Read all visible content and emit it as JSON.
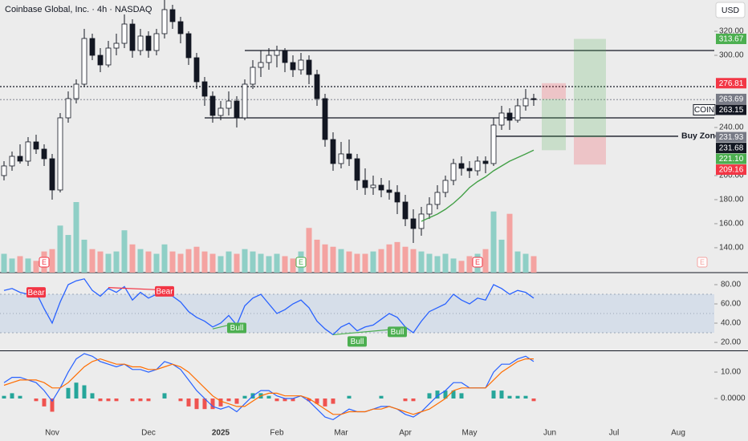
{
  "chart_data": [
    {
      "type": "candlestick",
      "title": "Coinbase Global, Inc. · 4h · NASDAQ",
      "currency": "USD",
      "categories": [
        null,
        null,
        null,
        null,
        null,
        null,
        "Nov",
        null,
        null,
        null,
        null,
        null,
        null,
        null,
        null,
        null,
        null,
        null,
        "Dec",
        null,
        null,
        null,
        null,
        null,
        null,
        null,
        null,
        "2025",
        null,
        null,
        null,
        null,
        null,
        null,
        "Feb",
        null,
        null,
        null,
        null,
        null,
        null,
        null,
        "Mar",
        null,
        null,
        null,
        null,
        null,
        null,
        null,
        "Apr",
        null,
        null,
        null,
        null,
        null,
        null,
        null,
        "May",
        null,
        null,
        null,
        null,
        null,
        null,
        null,
        null,
        null,
        "Jun",
        null,
        null,
        null,
        null,
        null,
        null,
        null,
        "Jul",
        null,
        null,
        null,
        null,
        null,
        null,
        null,
        "Aug",
        null,
        null,
        null,
        null
      ],
      "open": [
        200,
        208,
        216,
        212,
        228,
        222,
        214,
        188,
        248,
        264,
        276,
        314,
        300,
        292,
        306,
        310,
        326,
        304,
        316,
        304,
        318,
        338,
        328,
        318,
        298,
        278,
        266,
        250,
        256,
        262,
        248,
        276,
        290,
        294,
        300,
        304,
        294,
        288,
        296,
        284,
        264,
        230,
        210,
        218,
        214,
        196,
        190,
        192,
        188,
        186,
        178,
        164,
        156,
        168,
        176,
        186,
        196,
        210,
        206,
        204,
        212,
        210,
        242,
        252,
        246,
        258,
        264,
        null,
        null,
        null,
        null,
        null,
        null,
        null,
        null,
        null,
        null,
        null,
        null,
        null,
        null,
        null,
        null,
        null,
        null,
        null,
        null,
        null,
        null
      ],
      "high": [
        212,
        220,
        226,
        232,
        234,
        226,
        218,
        252,
        270,
        280,
        322,
        318,
        306,
        312,
        318,
        334,
        330,
        322,
        320,
        322,
        346,
        342,
        332,
        320,
        302,
        282,
        270,
        262,
        270,
        266,
        280,
        296,
        304,
        306,
        308,
        306,
        300,
        302,
        300,
        288,
        268,
        236,
        228,
        230,
        218,
        206,
        200,
        198,
        196,
        192,
        184,
        172,
        174,
        182,
        192,
        200,
        214,
        216,
        212,
        216,
        216,
        248,
        258,
        256,
        264,
        272,
        268,
        null,
        null,
        null,
        null,
        null,
        null,
        null,
        null,
        null,
        null,
        null,
        null,
        null,
        null,
        null,
        null,
        null,
        null,
        null,
        null,
        null,
        null
      ],
      "low": [
        196,
        204,
        210,
        208,
        218,
        208,
        180,
        186,
        244,
        260,
        274,
        296,
        286,
        290,
        300,
        306,
        298,
        300,
        298,
        300,
        314,
        322,
        310,
        292,
        272,
        258,
        244,
        246,
        250,
        240,
        246,
        272,
        282,
        288,
        290,
        286,
        282,
        284,
        276,
        258,
        224,
        204,
        206,
        208,
        188,
        184,
        184,
        182,
        180,
        168,
        158,
        144,
        150,
        164,
        172,
        182,
        192,
        200,
        198,
        200,
        202,
        208,
        238,
        238,
        244,
        254,
        258,
        null,
        null,
        null,
        null,
        null,
        null,
        null,
        null,
        null,
        null,
        null,
        null,
        null,
        null,
        null,
        null,
        null,
        null,
        null,
        null,
        null,
        null
      ],
      "close": [
        208,
        216,
        212,
        228,
        222,
        214,
        188,
        248,
        264,
        276,
        314,
        300,
        292,
        306,
        310,
        326,
        304,
        316,
        304,
        318,
        338,
        328,
        318,
        298,
        278,
        266,
        250,
        256,
        262,
        248,
        276,
        290,
        294,
        300,
        304,
        294,
        288,
        296,
        284,
        264,
        230,
        210,
        218,
        214,
        196,
        190,
        192,
        188,
        186,
        178,
        164,
        156,
        168,
        176,
        186,
        196,
        210,
        206,
        204,
        212,
        210,
        242,
        252,
        246,
        258,
        264,
        263.15,
        null,
        null,
        null,
        null,
        null,
        null,
        null,
        null,
        null,
        null,
        null,
        null,
        null,
        null,
        null,
        null,
        null,
        null,
        null,
        null,
        null,
        null
      ],
      "volume": [
        8,
        6,
        7,
        6,
        5,
        9,
        10,
        20,
        16,
        30,
        14,
        10,
        9,
        8,
        9,
        18,
        12,
        10,
        9,
        8,
        12,
        9,
        8,
        10,
        11,
        9,
        8,
        7,
        9,
        8,
        10,
        9,
        8,
        7,
        8,
        7,
        6,
        9,
        19,
        14,
        12,
        11,
        10,
        9,
        8,
        8,
        9,
        10,
        12,
        13,
        11,
        10,
        9,
        8,
        7,
        8,
        6,
        5,
        7,
        8,
        10,
        26,
        14,
        25,
        9,
        8,
        7,
        null,
        null,
        null,
        null,
        null,
        null,
        null,
        null,
        null,
        null,
        null,
        null,
        null,
        null,
        null,
        null,
        null,
        null,
        null,
        null,
        null,
        null
      ],
      "up_color": "#ffffff",
      "down_color": "#131722",
      "volume_up_color": "#8fcfc6",
      "volume_down_color": "#f4a3a1",
      "ma": {
        "color": "#43a047",
        "values": [
          null,
          null,
          null,
          null,
          null,
          null,
          null,
          null,
          null,
          null,
          null,
          null,
          null,
          null,
          null,
          null,
          null,
          null,
          null,
          null,
          null,
          null,
          null,
          null,
          null,
          null,
          null,
          null,
          null,
          null,
          null,
          null,
          null,
          null,
          null,
          null,
          null,
          null,
          null,
          null,
          null,
          null,
          null,
          null,
          null,
          null,
          null,
          null,
          null,
          null,
          null,
          null,
          162,
          165,
          168,
          172,
          177,
          183,
          190,
          195,
          199,
          204,
          208,
          212,
          215,
          218,
          221.1,
          null,
          null,
          null,
          null,
          null,
          null,
          null,
          null,
          null,
          null,
          null,
          null,
          null,
          null,
          null,
          null,
          null,
          null,
          null,
          null,
          null,
          null
        ]
      },
      "ylim": [
        119.3,
        346
      ],
      "yticks": [
        {
          "value": 140,
          "label": "140.00"
        },
        {
          "value": 160,
          "label": "160.00"
        },
        {
          "value": 180,
          "label": "180.00"
        },
        {
          "value": 200,
          "label": "200.00"
        },
        {
          "value": 240,
          "label": "240.00"
        },
        {
          "value": 300,
          "label": "300.00"
        },
        {
          "value": 320,
          "label": "320.00"
        }
      ],
      "levels": [
        {
          "value": 304,
          "from": 30,
          "style": "solid",
          "color": "#131722"
        },
        {
          "value": 274,
          "style": "dotted",
          "color": "#131722"
        },
        {
          "value": 263.15,
          "style": "dotted",
          "color": "#9598a1"
        },
        {
          "value": 248,
          "from": 25,
          "style": "solid",
          "color": "#131722"
        },
        {
          "value": 232.7,
          "from": 61,
          "to": 84,
          "style": "solid",
          "color": "#131722",
          "label": "Buy Zone"
        }
      ],
      "positions": [
        {
          "from": 67,
          "to": 70,
          "entry": 263.69,
          "target": 221.1,
          "stop": 276.81
        },
        {
          "from": 71,
          "to": 75,
          "entry": 231.93,
          "target": 313.67,
          "stop": 209.16
        }
      ],
      "price_labels": [
        {
          "value": 313.67,
          "label": "313.67",
          "color": "#4caf50"
        },
        {
          "value": 276.81,
          "label": "276.81",
          "color": "#f23645"
        },
        {
          "value": 263.69,
          "label": "263.69",
          "color": "#787b86"
        },
        {
          "value": 263.15,
          "label": "263.15",
          "color": "#131722",
          "tag": "COIN"
        },
        {
          "value": 231.93,
          "label": "231.93",
          "color": "#787b86"
        },
        {
          "value": 231.68,
          "label": "231.68",
          "color": "#131722"
        },
        {
          "value": 221.1,
          "label": "221.10",
          "color": "#4caf50"
        },
        {
          "value": 209.16,
          "label": "209.16",
          "color": "#f23645"
        }
      ],
      "events": [
        {
          "index": 5,
          "label": "E",
          "color": "#f23645"
        },
        {
          "index": 37,
          "label": "E",
          "color": "#4caf50"
        },
        {
          "index": 59,
          "label": "E",
          "color": "#f23645"
        },
        {
          "index": 87,
          "label": "E",
          "color": "#f4a3a1"
        }
      ]
    },
    {
      "type": "line",
      "color": "#2962ff",
      "values": [
        74,
        76,
        72,
        70,
        72,
        55,
        40,
        62,
        80,
        84,
        86,
        74,
        68,
        76,
        72,
        78,
        64,
        72,
        66,
        70,
        76,
        68,
        62,
        52,
        46,
        42,
        36,
        40,
        48,
        38,
        58,
        66,
        70,
        60,
        50,
        54,
        60,
        64,
        56,
        42,
        34,
        28,
        36,
        40,
        32,
        36,
        38,
        44,
        50,
        46,
        36,
        30,
        42,
        52,
        56,
        60,
        70,
        64,
        60,
        66,
        64,
        80,
        76,
        70,
        74,
        72,
        66
      ],
      "ylim": [
        11.7,
        92.5
      ],
      "yticks": [
        {
          "value": 20,
          "label": "20.00"
        },
        {
          "value": 40,
          "label": "40.00"
        },
        {
          "value": 60,
          "label": "60.00"
        },
        {
          "value": 80,
          "label": "80.00"
        }
      ],
      "band": [
        30,
        70
      ],
      "midline": 50,
      "annotations": [
        {
          "text": "Bear",
          "index": 4,
          "value": 72,
          "color": "#f23645"
        },
        {
          "text": "Bear",
          "index": 20,
          "value": 73,
          "color": "#f23645",
          "line": [
            [
              13,
              77
            ],
            [
              21,
              74
            ]
          ]
        },
        {
          "text": "Bull",
          "index": 29,
          "value": 35,
          "color": "#4caf50",
          "line": [
            [
              26,
              34
            ],
            [
              29,
              40
            ]
          ]
        },
        {
          "text": "Bull",
          "index": 44,
          "value": 21,
          "color": "#4caf50",
          "line": [
            [
              41,
              28
            ],
            [
              49,
              34
            ]
          ]
        },
        {
          "text": "Bull",
          "index": 49,
          "value": 31,
          "color": "#4caf50"
        }
      ]
    },
    {
      "type": "macd",
      "series": [
        {
          "color": "#2962ff",
          "values": [
            6,
            8,
            8,
            7,
            6,
            3,
            -1,
            4,
            10,
            15,
            17,
            16,
            14,
            13,
            12,
            13,
            11,
            11,
            10,
            11,
            14,
            13,
            11,
            7,
            3,
            0,
            -3,
            -4,
            -3,
            -5,
            -2,
            1,
            3,
            3,
            1,
            0,
            0,
            1,
            -1,
            -4,
            -7,
            -8,
            -6,
            -4,
            -5,
            -5,
            -4,
            -3,
            -3,
            -4,
            -6,
            -7,
            -5,
            -2,
            1,
            3,
            6,
            6,
            4,
            4,
            4,
            10,
            13,
            13,
            15,
            16,
            14
          ]
        },
        {
          "color": "#ff6d00",
          "values": [
            5,
            6,
            7,
            7,
            7,
            6,
            4,
            4,
            6,
            9,
            12,
            14,
            15,
            14,
            13,
            13,
            12,
            12,
            11,
            11,
            12,
            13,
            12,
            10,
            7,
            4,
            1,
            -1,
            -2,
            -3,
            -3,
            -1,
            1,
            2,
            2,
            1,
            1,
            1,
            0,
            -2,
            -4,
            -6,
            -6,
            -5,
            -5,
            -5,
            -4,
            -4,
            -3,
            -4,
            -5,
            -6,
            -5,
            -4,
            -2,
            0,
            3,
            4,
            4,
            4,
            4,
            7,
            10,
            12,
            14,
            15,
            15
          ]
        }
      ],
      "histogram": [
        1,
        2,
        1,
        0,
        -1,
        -3,
        -5,
        0,
        4,
        6,
        5,
        2,
        -1,
        -1,
        -1,
        0,
        -1,
        -1,
        -1,
        0,
        2,
        0,
        -1,
        -3,
        -4,
        -4,
        -4,
        -3,
        -1,
        -2,
        1,
        2,
        2,
        1,
        -1,
        -1,
        -1,
        0,
        -1,
        -2,
        -3,
        -2,
        0,
        1,
        0,
        0,
        0,
        1,
        0,
        0,
        -1,
        -1,
        0,
        2,
        3,
        3,
        3,
        2,
        0,
        0,
        0,
        3,
        3,
        1,
        1,
        1,
        -1
      ],
      "up_color": "#26a69a",
      "down_color": "#ef5350",
      "ylim": [
        -8.5,
        17.3
      ],
      "yticks": [
        {
          "value": 0,
          "label": "0.0000"
        },
        {
          "value": 10,
          "label": "10.00"
        }
      ]
    }
  ]
}
